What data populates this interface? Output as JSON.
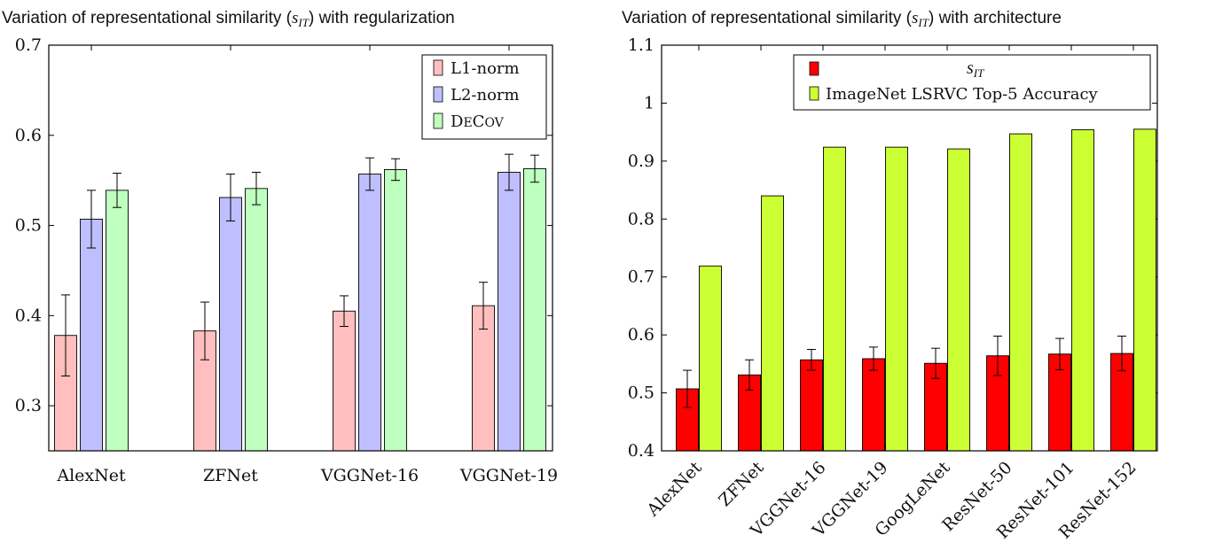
{
  "chart_data": [
    {
      "type": "bar",
      "title_prefix": "Variation of representational similarity (",
      "title_symbol": "s",
      "title_subscript": "IT",
      "title_suffix": ") with regularization",
      "categories": [
        "AlexNet",
        "ZFNet",
        "VGGNet-16",
        "VGGNet-19"
      ],
      "ylim": [
        0.25,
        0.7
      ],
      "yticks": [
        "0.3",
        "0.4",
        "0.5",
        "0.6",
        "0.7"
      ],
      "legend_position": "top-right",
      "grid": false,
      "series": [
        {
          "name": "L1-norm",
          "color": "#ffbfbf",
          "values": [
            0.378,
            0.383,
            0.405,
            0.411
          ],
          "errors": [
            0.045,
            0.032,
            0.017,
            0.026
          ]
        },
        {
          "name": "L2-norm",
          "color": "#bfbfff",
          "values": [
            0.507,
            0.531,
            0.557,
            0.559
          ],
          "errors": [
            0.032,
            0.026,
            0.018,
            0.02
          ]
        },
        {
          "name": "DeCov",
          "color": "#bfffbf",
          "values": [
            0.539,
            0.541,
            0.562,
            0.563
          ],
          "errors": [
            0.019,
            0.018,
            0.012,
            0.015
          ]
        }
      ]
    },
    {
      "type": "bar",
      "title_prefix": "Variation of representational similarity (",
      "title_symbol": "s",
      "title_subscript": "IT",
      "title_suffix": ") with architecture",
      "categories": [
        "AlexNet",
        "ZFNet",
        "VGGNet-16",
        "VGGNet-19",
        "GoogLeNet",
        "ResNet-50",
        "ResNet-101",
        "ResNet-152"
      ],
      "ylim": [
        0.4,
        1.1
      ],
      "yticks": [
        "0.4",
        "0.5",
        "0.6",
        "0.7",
        "0.8",
        "0.9",
        "1",
        "1.1"
      ],
      "legend_position": "top-right",
      "grid": false,
      "series": [
        {
          "name_symbol": "s",
          "name_subscript": "IT",
          "color": "#ff0000",
          "values": [
            0.507,
            0.531,
            0.557,
            0.559,
            0.551,
            0.564,
            0.567,
            0.568
          ],
          "errors": [
            0.032,
            0.026,
            0.018,
            0.02,
            0.026,
            0.034,
            0.027,
            0.03
          ]
        },
        {
          "name": "ImageNet LSRVC Top-5 Accuracy",
          "color": "#ccff33",
          "values": [
            0.719,
            0.84,
            0.924,
            0.924,
            0.921,
            0.947,
            0.954,
            0.955
          ],
          "errors": null
        }
      ]
    }
  ]
}
